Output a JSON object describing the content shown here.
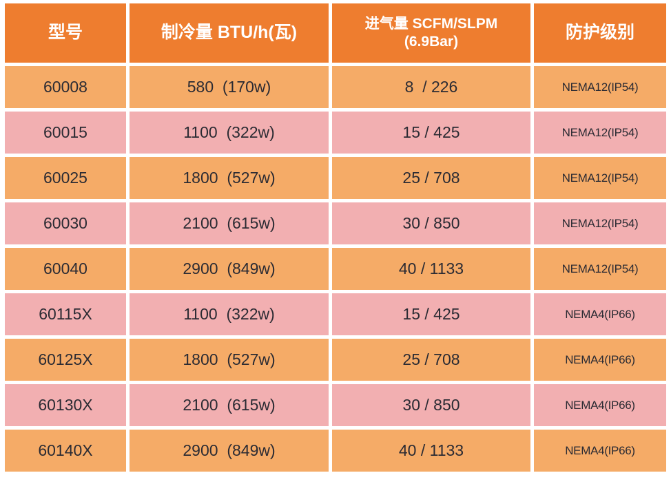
{
  "colors": {
    "header_bg": "#EE7D2F",
    "row_orange_bg": "#F5AB67",
    "row_pink_bg": "#F2AFB1",
    "header_text": "#FFFFFF",
    "body_text": "#2B2B33",
    "grid_lines": "#FFFFFF"
  },
  "chart_data": {
    "type": "table",
    "title": "",
    "legend": null,
    "grid": "white 5px gaps between cells, alternating orange/pink row fill",
    "columns": [
      {
        "label": "型号"
      },
      {
        "label": "制冷量 BTU/h(瓦)"
      },
      {
        "label": "进气量 SCFM/SLPM",
        "sublabel": "(6.9Bar)"
      },
      {
        "label": "防护级别"
      }
    ],
    "rows": [
      {
        "model": "60008",
        "cooling": "580  (170w)",
        "intake": "8  / 226",
        "protection": "NEMA12(IP54)"
      },
      {
        "model": "60015",
        "cooling": "1100  (322w)",
        "intake": "15 / 425",
        "protection": "NEMA12(IP54)"
      },
      {
        "model": "60025",
        "cooling": "1800  (527w)",
        "intake": "25 / 708",
        "protection": "NEMA12(IP54)"
      },
      {
        "model": "60030",
        "cooling": "2100  (615w)",
        "intake": "30 / 850",
        "protection": "NEMA12(IP54)"
      },
      {
        "model": "60040",
        "cooling": "2900  (849w)",
        "intake": "40 / 1133",
        "protection": "NEMA12(IP54)"
      },
      {
        "model": "60115X",
        "cooling": "1100  (322w)",
        "intake": "15 / 425",
        "protection": "NEMA4(IP66)"
      },
      {
        "model": "60125X",
        "cooling": "1800  (527w)",
        "intake": "25 / 708",
        "protection": "NEMA4(IP66)"
      },
      {
        "model": "60130X",
        "cooling": "2100  (615w)",
        "intake": "30 / 850",
        "protection": "NEMA4(IP66)"
      },
      {
        "model": "60140X",
        "cooling": "2900  (849w)",
        "intake": "40 / 1133",
        "protection": "NEMA4(IP66)"
      }
    ]
  }
}
